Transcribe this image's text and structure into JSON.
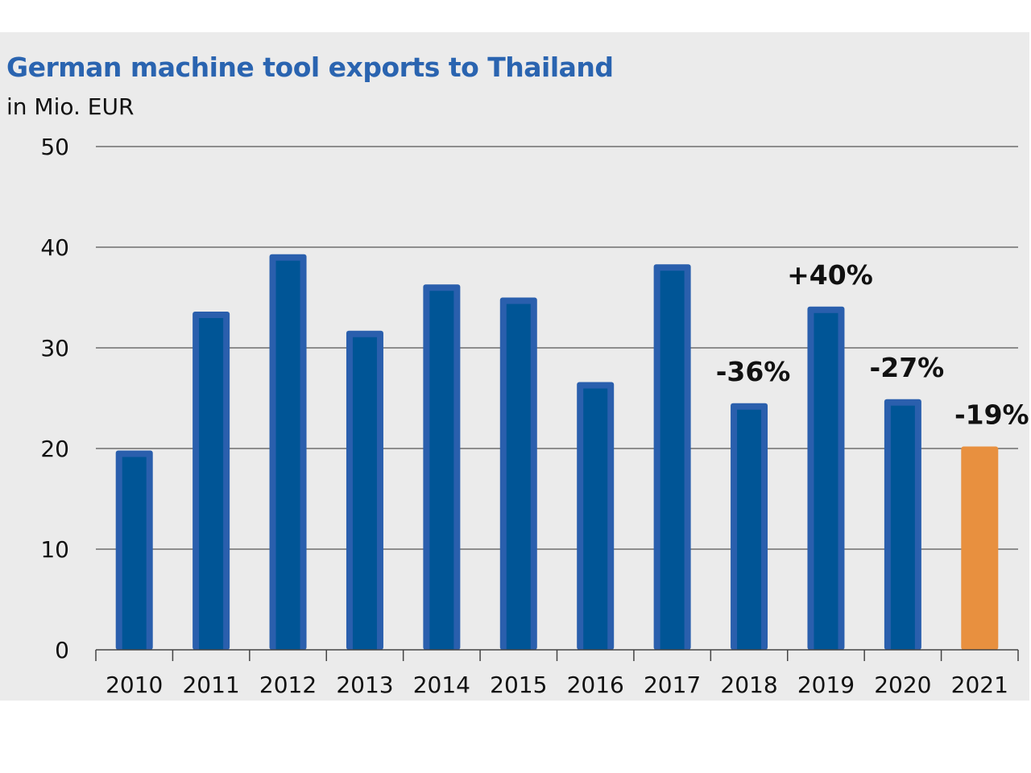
{
  "chart_data": {
    "type": "bar",
    "title": "German machine tool exports to Thailand",
    "subtitle": "in Mio. EUR",
    "categories": [
      "2010",
      "2011",
      "2012",
      "2013",
      "2014",
      "2015",
      "2016",
      "2017",
      "2018",
      "2019",
      "2020",
      "2021"
    ],
    "values": [
      19.8,
      33.6,
      39.3,
      31.7,
      36.3,
      35.0,
      26.6,
      38.3,
      24.5,
      34.1,
      24.9,
      20.2
    ],
    "ylim": [
      0,
      50
    ],
    "yticks": [
      0,
      10,
      20,
      30,
      40,
      50
    ],
    "grid": true,
    "colors": {
      "bar": "#005596",
      "bar_border": "#2a5fad",
      "highlight": "#e8903f",
      "title": "#2a64b0"
    },
    "highlight_category": "2021",
    "annotations": [
      {
        "category": "2018",
        "text": "-36%"
      },
      {
        "category": "2019",
        "text": "+40%"
      },
      {
        "category": "2020",
        "text": "-27%"
      },
      {
        "category": "2021",
        "text": "-19%"
      }
    ]
  }
}
